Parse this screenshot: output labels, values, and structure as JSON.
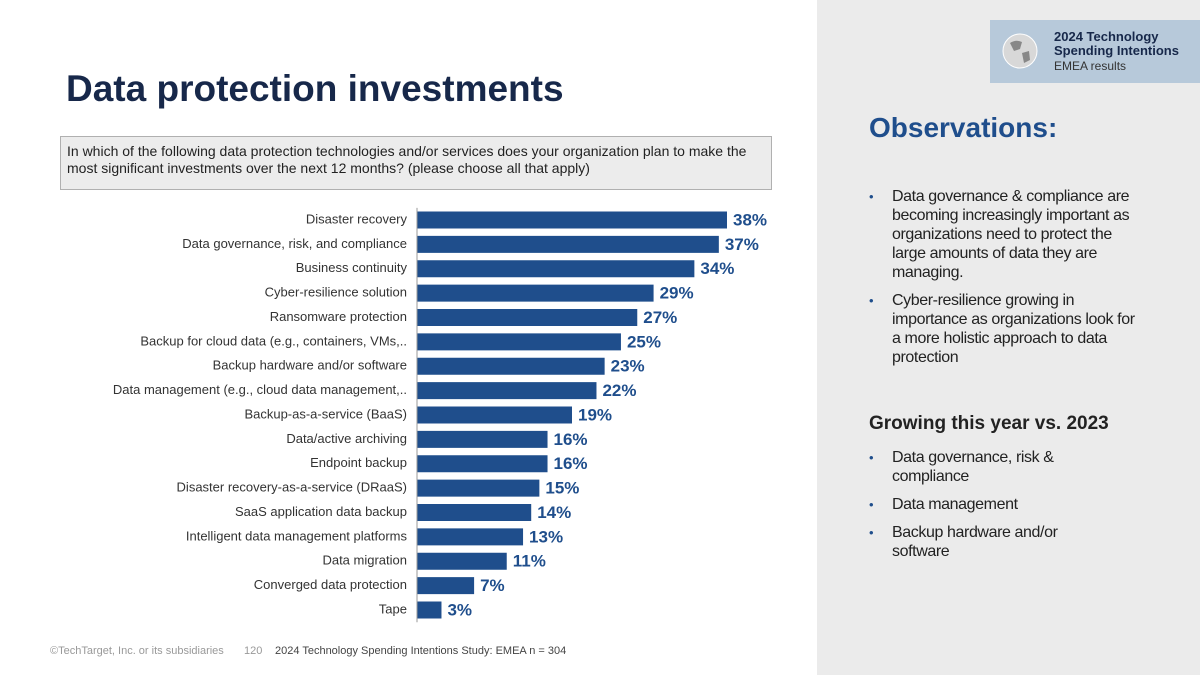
{
  "header": {
    "title": "Data protection investments"
  },
  "question": "In which of the following data protection technologies and/or services does your organization plan to make the most significant investments over the next 12 months? (please choose all that apply)",
  "chart_data": {
    "type": "bar",
    "orientation": "horizontal",
    "color": "#1f4e8c",
    "categories": [
      "Disaster recovery",
      "Data governance, risk, and compliance",
      "Business continuity",
      "Cyber-resilience solution",
      "Ransomware protection",
      "Backup for cloud data (e.g., containers, VMs,..",
      "Backup hardware and/or software",
      "Data management (e.g., cloud data management,..",
      "Backup-as-a-service (BaaS)",
      "Data/active archiving",
      "Endpoint backup",
      "Disaster recovery-as-a-service (DRaaS)",
      "SaaS application data backup",
      "Intelligent data management platforms",
      "Data migration",
      "Converged data protection",
      "Tape"
    ],
    "values": [
      38,
      37,
      34,
      29,
      27,
      25,
      23,
      22,
      19,
      16,
      16,
      15,
      14,
      13,
      11,
      7,
      3
    ],
    "value_labels": [
      "38%",
      "37%",
      "34%",
      "29%",
      "27%",
      "25%",
      "23%",
      "22%",
      "19%",
      "16%",
      "16%",
      "15%",
      "14%",
      "13%",
      "11%",
      "7%",
      "3%"
    ]
  },
  "sidebar": {
    "badge": {
      "title": "2024 Technology",
      "subtitle": "Spending Intentions",
      "region": "EMEA results"
    },
    "observations_title": "Observations:",
    "observations": [
      "Data governance & compliance are becoming increasingly important as organizations need to protect the large amounts of data they are managing.",
      "Cyber-resilience growing in importance as organizations look for a more holistic approach to data protection"
    ],
    "growing_title": "Growing this year vs. 2023",
    "growing": [
      "Data governance, risk & compliance",
      "Data management",
      "Backup hardware and/or software"
    ]
  },
  "footer": {
    "copyright": "©TechTarget, Inc. or its subsidiaries",
    "page": "120",
    "source": "2024 Technology Spending Intentions Study: EMEA n = 304"
  }
}
